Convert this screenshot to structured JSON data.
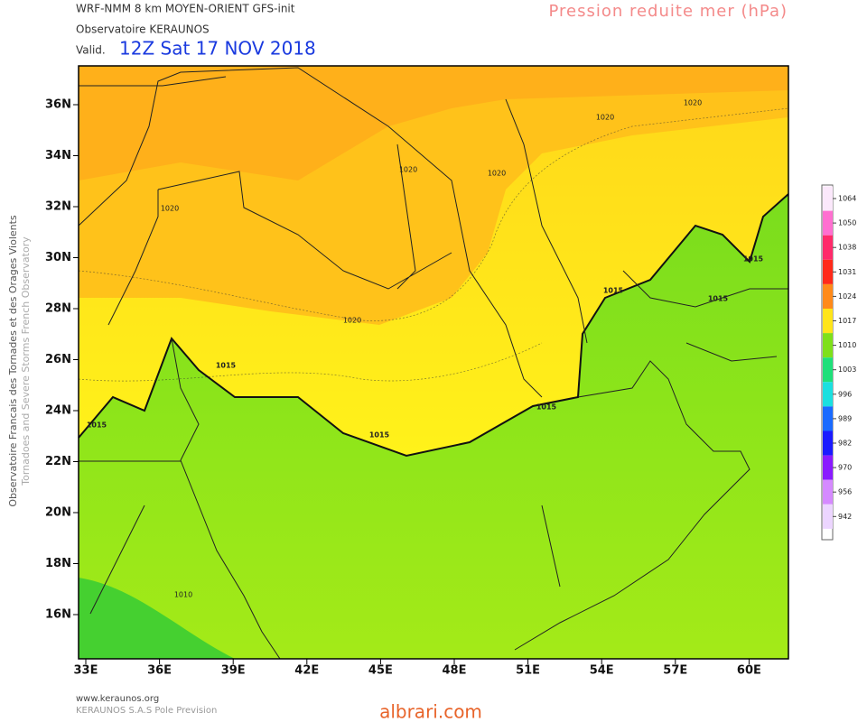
{
  "header": {
    "model": "WRF-NMM 8 km MOYEN-ORIENT   GFS-init",
    "source": "Observatoire KERAUNOS",
    "valid_prefix": "Valid.",
    "valid_time": "12Z Sat 17 NOV 2018",
    "title": "Pression reduite mer (hPa)"
  },
  "side_text": [
    "Observatoire Francais des Tornades et des Orages Violents",
    "Tornadoes and Severe Storms French Observatory"
  ],
  "map": {
    "lat_labels": [
      "36N",
      "34N",
      "32N",
      "30N",
      "28N",
      "26N",
      "24N",
      "22N",
      "20N",
      "18N",
      "16N"
    ],
    "lon_labels": [
      "33E",
      "36E",
      "39E",
      "42E",
      "45E",
      "48E",
      "51E",
      "54E",
      "57E",
      "60E"
    ],
    "contour_labels": [
      "1020",
      "1020",
      "1020",
      "1020",
      "1020",
      "1020",
      "1015",
      "1015",
      "1015",
      "1015",
      "1015",
      "1015",
      "1015",
      "1010"
    ]
  },
  "colorbar": {
    "labels": [
      "1064",
      "1050",
      "1038",
      "1031",
      "1024",
      "1017",
      "1010",
      "1003",
      "996",
      "989",
      "982",
      "970",
      "956",
      "942"
    ],
    "colors": [
      "#fbe8fb",
      "#ff6fd0",
      "#ff2a6a",
      "#ff2a1a",
      "#ff8a1a",
      "#ffe51a",
      "#7fe01a",
      "#1ee07a",
      "#1ae0e0",
      "#1a6aff",
      "#1a1aff",
      "#8a1aff",
      "#d58aff",
      "#ecd5ff"
    ]
  },
  "footer": {
    "site": "www.keraunos.org",
    "company": "KERAUNOS S.A.S Pole Prevision",
    "watermark": "albrari.com"
  }
}
